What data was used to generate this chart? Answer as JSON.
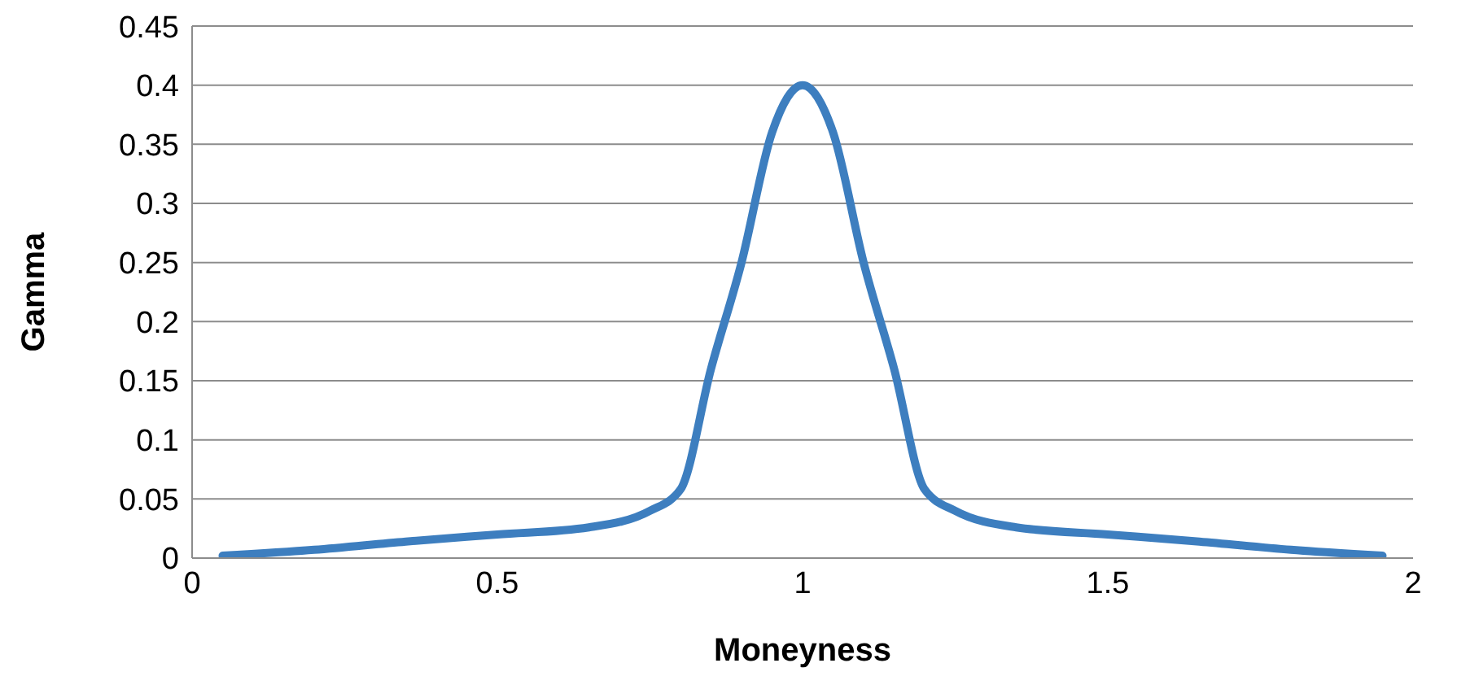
{
  "chart_data": {
    "type": "line",
    "xlabel": "Moneyness",
    "ylabel": "Gamma",
    "x": [
      0.05,
      0.2,
      0.35,
      0.5,
      0.65,
      0.75,
      0.8,
      0.85,
      0.9,
      0.95,
      1,
      1.05,
      1.1,
      1.15,
      1.2,
      1.25,
      1.35,
      1.5,
      1.65,
      1.8,
      1.95
    ],
    "series": [
      {
        "color": "#3d7ebf",
        "values": [
          0.002,
          0.007,
          0.014,
          0.02,
          0.026,
          0.04,
          0.058,
          0.16,
          0.25,
          0.36,
          0.4,
          0.36,
          0.25,
          0.16,
          0.058,
          0.04,
          0.026,
          0.02,
          0.014,
          0.007,
          0.002
        ]
      }
    ],
    "xlim": [
      0,
      2
    ],
    "xticks": [
      0,
      0.5,
      1,
      1.5,
      2
    ],
    "ylim": [
      0,
      0.45
    ],
    "yticks": [
      0,
      0.05,
      0.1,
      0.15,
      0.2,
      0.25,
      0.3,
      0.35,
      0.4,
      0.45
    ],
    "grid": "y",
    "legend": false,
    "marker": "none",
    "line_style": "solid"
  }
}
